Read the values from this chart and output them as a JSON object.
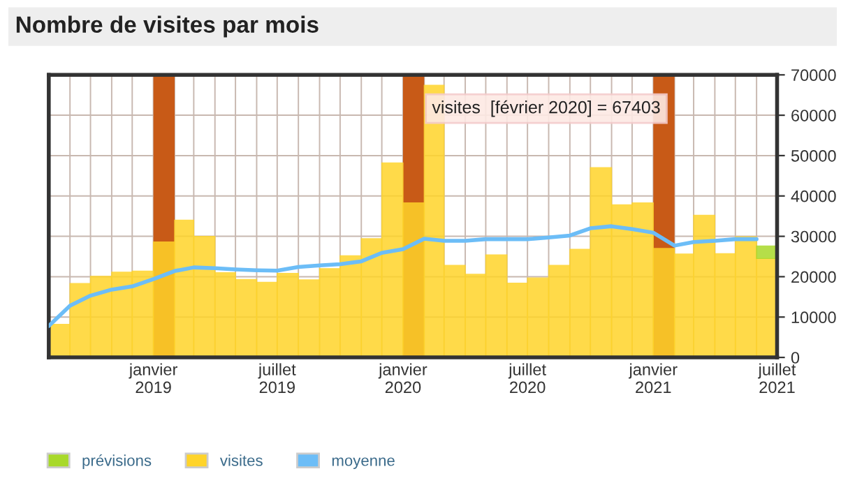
{
  "chart_data": {
    "type": "bar",
    "title": "Nombre de visites par mois",
    "x": [
      "2018-08",
      "2018-09",
      "2018-10",
      "2018-11",
      "2018-12",
      "2019-01",
      "2019-02",
      "2019-03",
      "2019-04",
      "2019-05",
      "2019-06",
      "2019-07",
      "2019-08",
      "2019-09",
      "2019-10",
      "2019-11",
      "2019-12",
      "2020-01",
      "2020-02",
      "2020-03",
      "2020-04",
      "2020-05",
      "2020-06",
      "2020-07",
      "2020-08",
      "2020-09",
      "2020-10",
      "2020-11",
      "2020-12",
      "2021-01",
      "2021-02",
      "2021-03",
      "2021-04",
      "2021-05",
      "2021-06"
    ],
    "series": [
      {
        "name": "visites",
        "color": "#ffd42a",
        "values": [
          8200,
          18300,
          20100,
          21100,
          21400,
          28600,
          34000,
          30000,
          21000,
          19300,
          18600,
          20800,
          19200,
          22000,
          25200,
          29400,
          48200,
          38300,
          67403,
          22800,
          20600,
          25400,
          18400,
          19700,
          22800,
          26800,
          47000,
          37800,
          38300,
          27000,
          25600,
          35200,
          25700,
          29900,
          24500
        ]
      },
      {
        "name": "prévisions",
        "color": "#a8d92a",
        "values": [
          null,
          null,
          null,
          null,
          null,
          null,
          null,
          null,
          null,
          null,
          null,
          null,
          null,
          null,
          null,
          null,
          null,
          null,
          null,
          null,
          null,
          null,
          null,
          null,
          null,
          null,
          null,
          null,
          null,
          null,
          null,
          null,
          null,
          null,
          3100
        ],
        "base": [
          null,
          null,
          null,
          null,
          null,
          null,
          null,
          null,
          null,
          null,
          null,
          null,
          null,
          null,
          null,
          null,
          null,
          null,
          null,
          null,
          null,
          null,
          null,
          null,
          null,
          null,
          null,
          null,
          null,
          null,
          null,
          null,
          null,
          null,
          24500
        ]
      },
      {
        "name": "moyenne",
        "type": "line",
        "color": "#6cbdf7",
        "values": [
          7800,
          12800,
          15300,
          16800,
          17600,
          19400,
          21400,
          22300,
          22100,
          21800,
          21600,
          21500,
          22400,
          22800,
          23100,
          23800,
          25900,
          26800,
          29400,
          28900,
          28900,
          29300,
          29300,
          29300,
          29700,
          30200,
          32000,
          32500,
          31800,
          30900,
          27700,
          28600,
          28900,
          29300,
          29300
        ]
      }
    ],
    "xlim": [
      "2018-08",
      "2021-07"
    ],
    "xticks": [
      {
        "value": "2018-09",
        "label": null
      },
      {
        "value": "2018-10",
        "label": null
      },
      {
        "value": "2018-11",
        "label": null
      },
      {
        "value": "2018-12",
        "label": null
      },
      {
        "value": "2019-01",
        "label": "janvier\n2019"
      },
      {
        "value": "2019-02",
        "label": null
      },
      {
        "value": "2019-03",
        "label": null
      },
      {
        "value": "2019-04",
        "label": null
      },
      {
        "value": "2019-05",
        "label": null
      },
      {
        "value": "2019-06",
        "label": null
      },
      {
        "value": "2019-07",
        "label": "juillet\n2019"
      },
      {
        "value": "2019-08",
        "label": null
      },
      {
        "value": "2019-09",
        "label": null
      },
      {
        "value": "2019-10",
        "label": null
      },
      {
        "value": "2019-11",
        "label": null
      },
      {
        "value": "2019-12",
        "label": null
      },
      {
        "value": "2020-01",
        "label": "janvier\n2020"
      },
      {
        "value": "2020-02",
        "label": null
      },
      {
        "value": "2020-03",
        "label": null
      },
      {
        "value": "2020-04",
        "label": null
      },
      {
        "value": "2020-05",
        "label": null
      },
      {
        "value": "2020-06",
        "label": null
      },
      {
        "value": "2020-07",
        "label": "juillet\n2020"
      },
      {
        "value": "2020-08",
        "label": null
      },
      {
        "value": "2020-09",
        "label": null
      },
      {
        "value": "2020-10",
        "label": null
      },
      {
        "value": "2020-11",
        "label": null
      },
      {
        "value": "2020-12",
        "label": null
      },
      {
        "value": "2021-01",
        "label": "janvier\n2021"
      },
      {
        "value": "2021-02",
        "label": null
      },
      {
        "value": "2021-03",
        "label": null
      },
      {
        "value": "2021-04",
        "label": null
      },
      {
        "value": "2021-05",
        "label": null
      },
      {
        "value": "2021-06",
        "label": null
      },
      {
        "value": "2021-07",
        "label": "juillet\n2021"
      }
    ],
    "ylim": [
      0,
      70000
    ],
    "yticks": [
      0,
      10000,
      20000,
      30000,
      40000,
      50000,
      60000,
      70000
    ],
    "grid": true,
    "legend": "bottom left",
    "bands": [
      {
        "axis": "x",
        "from": "2019-01",
        "to": "2019-02",
        "color": "#c85a17"
      },
      {
        "axis": "x",
        "from": "2020-01",
        "to": "2020-02",
        "color": "#c85a17"
      },
      {
        "axis": "x",
        "from": "2021-01",
        "to": "2021-02",
        "color": "#c85a17"
      }
    ],
    "annotations": [
      {
        "text": "visites  [février 2020] = 67403",
        "x": "2020-02",
        "y": 67403
      }
    ]
  }
}
